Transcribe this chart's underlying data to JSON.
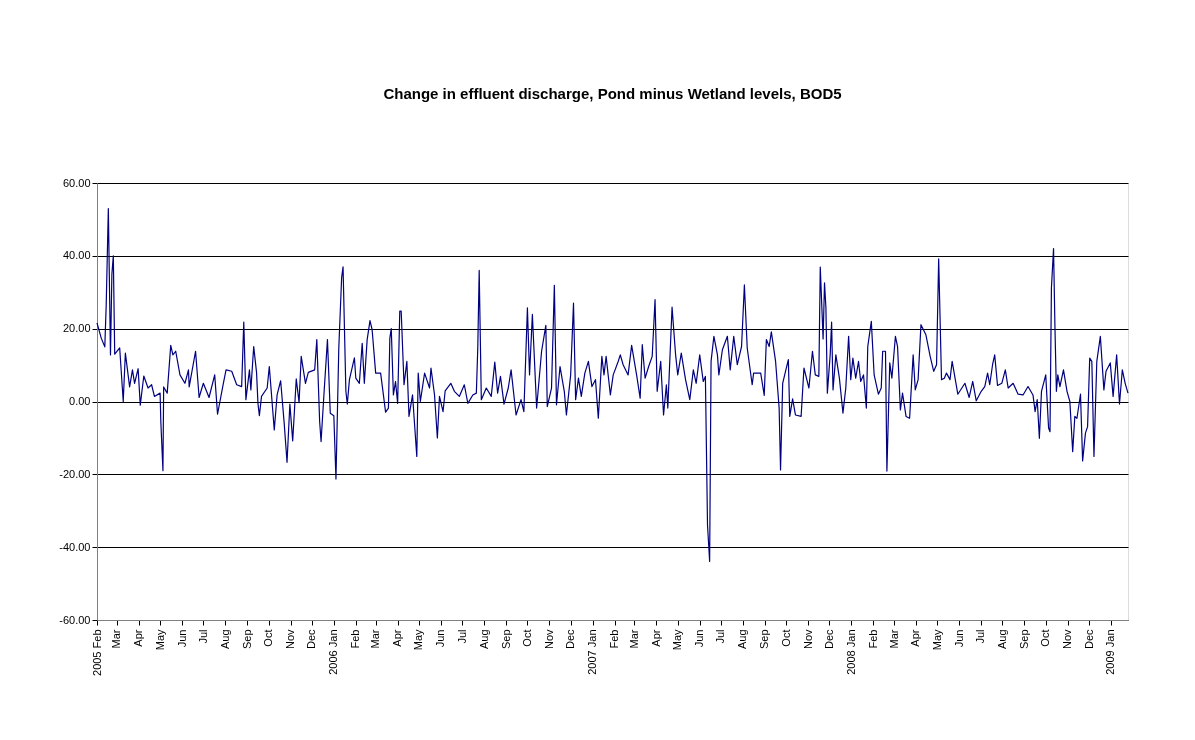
{
  "chart_data": {
    "type": "line",
    "title": "Change in effluent discharge, Pond minus Wetland levels, BOD5",
    "x": [
      "2005-02-01",
      "2005-02-07",
      "2005-02-12",
      "2005-02-14",
      "2005-02-17",
      "2005-02-20",
      "2005-02-22",
      "2005-02-24",
      "2005-02-26",
      "2005-03-05",
      "2005-03-10",
      "2005-03-13",
      "2005-03-19",
      "2005-03-23",
      "2005-03-26",
      "2005-03-31",
      "2005-04-03",
      "2005-04-08",
      "2005-04-14",
      "2005-04-19",
      "2005-04-23",
      "2005-05-01",
      "2005-05-02",
      "2005-05-05",
      "2005-05-06",
      "2005-05-11",
      "2005-05-16",
      "2005-05-19",
      "2005-05-23",
      "2005-05-29",
      "2005-06-05",
      "2005-06-10",
      "2005-06-11",
      "2005-06-20",
      "2005-06-25",
      "2005-07-01",
      "2005-07-09",
      "2005-07-17",
      "2005-07-21",
      "2005-07-29",
      "2005-08-02",
      "2005-08-10",
      "2005-08-17",
      "2005-08-24",
      "2005-08-27",
      "2005-08-30",
      "2005-09-04",
      "2005-09-06",
      "2005-09-10",
      "2005-09-14",
      "2005-09-16",
      "2005-09-18",
      "2005-09-21",
      "2005-09-29",
      "2005-10-02",
      "2005-10-09",
      "2005-10-13",
      "2005-10-18",
      "2005-10-23",
      "2005-10-27",
      "2005-10-31",
      "2005-11-04",
      "2005-11-09",
      "2005-11-13",
      "2005-11-16",
      "2005-11-22",
      "2005-11-26",
      "2005-12-05",
      "2005-12-08",
      "2005-12-12",
      "2005-12-14",
      "2005-12-18",
      "2005-12-23",
      "2005-12-27",
      "2006-01-01",
      "2006-01-04",
      "2006-01-08",
      "2006-01-12",
      "2006-01-14",
      "2006-01-18",
      "2006-01-20",
      "2006-01-23",
      "2006-01-30",
      "2006-02-01",
      "2006-02-06",
      "2006-02-10",
      "2006-02-13",
      "2006-02-17",
      "2006-02-21",
      "2006-02-24",
      "2006-03-01",
      "2006-03-08",
      "2006-03-15",
      "2006-03-19",
      "2006-03-21",
      "2006-03-23",
      "2006-03-26",
      "2006-03-29",
      "2006-04-01",
      "2006-04-04",
      "2006-04-06",
      "2006-04-10",
      "2006-04-14",
      "2006-04-17",
      "2006-04-22",
      "2006-04-28",
      "2006-04-30",
      "2006-05-03",
      "2006-05-09",
      "2006-05-16",
      "2006-05-18",
      "2006-05-23",
      "2006-05-27",
      "2006-05-30",
      "2006-06-04",
      "2006-06-07",
      "2006-06-15",
      "2006-06-20",
      "2006-06-27",
      "2006-07-04",
      "2006-07-09",
      "2006-07-16",
      "2006-07-21",
      "2006-07-23",
      "2006-07-25",
      "2006-07-28",
      "2006-08-04",
      "2006-08-11",
      "2006-08-16",
      "2006-08-20",
      "2006-08-24",
      "2006-08-29",
      "2006-09-04",
      "2006-09-08",
      "2006-09-15",
      "2006-09-22",
      "2006-09-26",
      "2006-10-01",
      "2006-10-04",
      "2006-10-08",
      "2006-10-14",
      "2006-10-21",
      "2006-10-27",
      "2006-10-29",
      "2006-11-04",
      "2006-11-08",
      "2006-11-11",
      "2006-11-16",
      "2006-11-22",
      "2006-11-25",
      "2006-12-01",
      "2006-12-05",
      "2006-12-08",
      "2006-12-12",
      "2006-12-16",
      "2006-12-21",
      "2006-12-26",
      "2006-12-31",
      "2007-01-05",
      "2007-01-09",
      "2007-01-14",
      "2007-01-17",
      "2007-01-20",
      "2007-01-26",
      "2007-01-30",
      "2007-02-06",
      "2007-02-09",
      "2007-02-13",
      "2007-02-20",
      "2007-02-25",
      "2007-03-04",
      "2007-03-09",
      "2007-03-12",
      "2007-03-16",
      "2007-03-21",
      "2007-03-26",
      "2007-03-30",
      "2007-04-02",
      "2007-04-07",
      "2007-04-11",
      "2007-04-15",
      "2007-04-17",
      "2007-04-23",
      "2007-04-28",
      "2007-05-01",
      "2007-05-06",
      "2007-05-12",
      "2007-05-18",
      "2007-05-23",
      "2007-05-27",
      "2007-06-01",
      "2007-06-06",
      "2007-06-09",
      "2007-06-12",
      "2007-06-15",
      "2007-06-17",
      "2007-06-21",
      "2007-06-26",
      "2007-06-28",
      "2007-07-03",
      "2007-07-10",
      "2007-07-14",
      "2007-07-19",
      "2007-07-24",
      "2007-07-30",
      "2007-08-03",
      "2007-08-07",
      "2007-08-14",
      "2007-08-16",
      "2007-08-26",
      "2007-08-31",
      "2007-09-03",
      "2007-09-07",
      "2007-09-10",
      "2007-09-16",
      "2007-09-21",
      "2007-09-23",
      "2007-09-26",
      "2007-09-30",
      "2007-10-04",
      "2007-10-06",
      "2007-10-10",
      "2007-10-14",
      "2007-10-22",
      "2007-10-26",
      "2007-11-02",
      "2007-11-07",
      "2007-11-11",
      "2007-11-16",
      "2007-11-18",
      "2007-11-22",
      "2007-11-24",
      "2007-11-26",
      "2007-11-28",
      "2007-12-02",
      "2007-12-04",
      "2007-12-06",
      "2007-12-10",
      "2007-12-15",
      "2007-12-20",
      "2007-12-24",
      "2007-12-28",
      "2007-12-31",
      "2008-01-03",
      "2008-01-07",
      "2008-01-11",
      "2008-01-14",
      "2008-01-18",
      "2008-01-22",
      "2008-01-24",
      "2008-01-29",
      "2008-02-02",
      "2008-02-08",
      "2008-02-12",
      "2008-02-14",
      "2008-02-18",
      "2008-02-20",
      "2008-02-24",
      "2008-02-27",
      "2008-03-03",
      "2008-03-06",
      "2008-03-10",
      "2008-03-13",
      "2008-03-18",
      "2008-03-23",
      "2008-03-28",
      "2008-03-31",
      "2008-04-04",
      "2008-04-08",
      "2008-04-15",
      "2008-04-21",
      "2008-04-26",
      "2008-04-30",
      "2008-05-03",
      "2008-05-07",
      "2008-05-11",
      "2008-05-14",
      "2008-05-19",
      "2008-05-22",
      "2008-05-30",
      "2008-06-09",
      "2008-06-15",
      "2008-06-20",
      "2008-06-25",
      "2008-07-02",
      "2008-07-07",
      "2008-07-11",
      "2008-07-14",
      "2008-07-18",
      "2008-07-21",
      "2008-07-25",
      "2008-07-31",
      "2008-08-05",
      "2008-08-09",
      "2008-08-16",
      "2008-08-23",
      "2008-08-30",
      "2008-09-06",
      "2008-09-13",
      "2008-09-16",
      "2008-09-19",
      "2008-09-22",
      "2008-09-25",
      "2008-10-01",
      "2008-10-05",
      "2008-10-07",
      "2008-10-09",
      "2008-10-12",
      "2008-10-14",
      "2008-10-16",
      "2008-10-18",
      "2008-10-21",
      "2008-10-26",
      "2008-10-31",
      "2008-11-04",
      "2008-11-08",
      "2008-11-11",
      "2008-11-14",
      "2008-11-19",
      "2008-11-22",
      "2008-11-26",
      "2008-11-29",
      "2008-12-02",
      "2008-12-05",
      "2008-12-08",
      "2008-12-12",
      "2008-12-17",
      "2008-12-22",
      "2008-12-25",
      "2008-12-31",
      "2009-01-04",
      "2009-01-09",
      "2009-01-13",
      "2009-01-17",
      "2009-01-21",
      "2009-01-25"
    ],
    "series": [
      {
        "color": "#000080",
        "values": [
          21.6,
          17.4,
          15,
          26.6,
          53,
          12.8,
          35,
          40,
          13,
          14.7,
          0,
          13.3,
          4,
          8.7,
          5,
          9,
          -1,
          7,
          3.7,
          4.6,
          1.4,
          2.3,
          -5.5,
          -19,
          4,
          2.3,
          15.4,
          12.8,
          13.8,
          7.3,
          5,
          8.7,
          4,
          13.8,
          1.1,
          5,
          1.1,
          7.3,
          -3.5,
          4.8,
          8.7,
          8.3,
          4.6,
          4.1,
          21.8,
          0.5,
          8.7,
          3.2,
          15.1,
          8,
          -0.5,
          -3.9,
          1.4,
          3.7,
          9.6,
          -7.8,
          1.8,
          5.7,
          -6,
          -16.7,
          -0.7,
          -10.8,
          6.2,
          -0.3,
          12.4,
          5,
          8,
          8.7,
          17,
          -5.5,
          -11,
          1.8,
          17,
          -3.2,
          -3.9,
          -21.3,
          14.7,
          34,
          37,
          2.8,
          -0.7,
          6,
          12,
          6.4,
          5,
          16,
          5,
          17,
          22.2,
          19.7,
          7.8,
          7.8,
          -2.9,
          -1.8,
          17.4,
          20,
          1.8,
          5.5,
          -0.5,
          24.8,
          24.8,
          4.6,
          11,
          -4.1,
          1.8,
          -15.1,
          7.8,
          0,
          7.8,
          3.7,
          9.2,
          1.8,
          -10,
          1.4,
          -2.8,
          2.9,
          5,
          2.8,
          1.4,
          4.6,
          -0.5,
          1.8,
          2.3,
          14.7,
          36,
          0.5,
          3.7,
          1.4,
          10.8,
          2.3,
          6.9,
          -0.7,
          3.7,
          8.7,
          -3.7,
          0.5,
          -2.8,
          25.7,
          7.3,
          23.9,
          -1.8,
          13.8,
          20.9,
          -1.4,
          3.7,
          31.9,
          -0.9,
          9.6,
          2.8,
          -3.7,
          7.3,
          27,
          0.5,
          6.4,
          1.4,
          7.8,
          11,
          4.1,
          6,
          -4.6,
          12.4,
          7.3,
          12.4,
          1.8,
          7.3,
          11,
          12.8,
          10.1,
          7.3,
          15.4,
          7.3,
          0.9,
          15.6,
          6.4,
          9.6,
          12.4,
          28,
          2.8,
          11,
          -3.7,
          4.6,
          -1.8,
          25.9,
          12.8,
          7.3,
          13.3,
          6,
          0.5,
          8.7,
          5,
          12.8,
          5.5,
          6.9,
          -34,
          -43.9,
          11,
          17.9,
          12.8,
          7.3,
          14.2,
          17.9,
          8.7,
          17.9,
          10.1,
          15.1,
          32,
          14.7,
          4.6,
          7.8,
          7.8,
          1.7,
          17,
          15.1,
          19.1,
          11,
          -1.8,
          -18.8,
          5,
          8.3,
          11.5,
          -4.1,
          0.7,
          -3.7,
          -4.1,
          9.2,
          3.7,
          13.8,
          7.3,
          6.9,
          36.9,
          17.2,
          32.6,
          25.7,
          2.3,
          12.8,
          21.8,
          3.2,
          12.8,
          6.4,
          -3.2,
          3.7,
          17.9,
          6,
          11.9,
          6.4,
          11,
          5.5,
          7.3,
          -1.8,
          15.1,
          22,
          7.3,
          2,
          3.7,
          13.8,
          13.8,
          -19.1,
          10.6,
          6.4,
          17.9,
          15.1,
          -2.3,
          2.3,
          -4.1,
          -4.6,
          12.8,
          3.2,
          6,
          21.1,
          18.3,
          12.4,
          8.3,
          10.1,
          39.2,
          6,
          6.4,
          7.8,
          6,
          11,
          2,
          5,
          1.1,
          5.5,
          0.2,
          2.8,
          4.1,
          7.8,
          4.6,
          10.1,
          12.8,
          4.4,
          5,
          8.7,
          3.7,
          5,
          2,
          1.8,
          4.1,
          1.8,
          -2.8,
          0.5,
          -10.1,
          2.8,
          7.3,
          -7.3,
          -8.3,
          31.2,
          42,
          20.2,
          2.8,
          7.3,
          4.1,
          8.7,
          2.8,
          0,
          -13.8,
          -4.1,
          -4.6,
          2,
          -16.3,
          -8.7,
          -6.9,
          11.9,
          11,
          -15.1,
          11,
          17.9,
          3.2,
          8.3,
          10.6,
          1.4,
          12.8,
          -0.7,
          8.7,
          5,
          2.3
        ]
      }
    ],
    "xlim": [
      "2005-02-01",
      "2009-01-25"
    ],
    "xticks": [
      {
        "value": "2005-02-01",
        "label": "2005 Feb"
      },
      {
        "value": "2005-03-01",
        "label": "Mar"
      },
      {
        "value": "2005-04-01",
        "label": "Apr"
      },
      {
        "value": "2005-05-01",
        "label": "May"
      },
      {
        "value": "2005-06-01",
        "label": "Jun"
      },
      {
        "value": "2005-07-01",
        "label": "Jul"
      },
      {
        "value": "2005-08-01",
        "label": "Aug"
      },
      {
        "value": "2005-09-01",
        "label": "Sep"
      },
      {
        "value": "2005-10-01",
        "label": "Oct"
      },
      {
        "value": "2005-11-01",
        "label": "Nov"
      },
      {
        "value": "2005-12-01",
        "label": "Dec"
      },
      {
        "value": "2006-01-01",
        "label": "2006 Jan"
      },
      {
        "value": "2006-02-01",
        "label": "Feb"
      },
      {
        "value": "2006-03-01",
        "label": "Mar"
      },
      {
        "value": "2006-04-01",
        "label": "Apr"
      },
      {
        "value": "2006-05-01",
        "label": "May"
      },
      {
        "value": "2006-06-01",
        "label": "Jun"
      },
      {
        "value": "2006-07-01",
        "label": "Jul"
      },
      {
        "value": "2006-08-01",
        "label": "Aug"
      },
      {
        "value": "2006-09-01",
        "label": "Sep"
      },
      {
        "value": "2006-10-01",
        "label": "Oct"
      },
      {
        "value": "2006-11-01",
        "label": "Nov"
      },
      {
        "value": "2006-12-01",
        "label": "Dec"
      },
      {
        "value": "2007-01-01",
        "label": "2007 Jan"
      },
      {
        "value": "2007-02-01",
        "label": "Feb"
      },
      {
        "value": "2007-03-01",
        "label": "Mar"
      },
      {
        "value": "2007-04-01",
        "label": "Apr"
      },
      {
        "value": "2007-05-01",
        "label": "May"
      },
      {
        "value": "2007-06-01",
        "label": "Jun"
      },
      {
        "value": "2007-07-01",
        "label": "Jul"
      },
      {
        "value": "2007-08-01",
        "label": "Aug"
      },
      {
        "value": "2007-09-01",
        "label": "Sep"
      },
      {
        "value": "2007-10-01",
        "label": "Oct"
      },
      {
        "value": "2007-11-01",
        "label": "Nov"
      },
      {
        "value": "2007-12-01",
        "label": "Dec"
      },
      {
        "value": "2008-01-01",
        "label": "2008 Jan"
      },
      {
        "value": "2008-02-01",
        "label": "Feb"
      },
      {
        "value": "2008-03-01",
        "label": "Mar"
      },
      {
        "value": "2008-04-01",
        "label": "Apr"
      },
      {
        "value": "2008-05-01",
        "label": "May"
      },
      {
        "value": "2008-06-01",
        "label": "Jun"
      },
      {
        "value": "2008-07-01",
        "label": "Jul"
      },
      {
        "value": "2008-08-01",
        "label": "Aug"
      },
      {
        "value": "2008-09-01",
        "label": "Sep"
      },
      {
        "value": "2008-10-01",
        "label": "Oct"
      },
      {
        "value": "2008-11-01",
        "label": "Nov"
      },
      {
        "value": "2008-12-01",
        "label": "Dec"
      },
      {
        "value": "2009-01-01",
        "label": "2009 Jan"
      }
    ],
    "ylim": [
      -60,
      60
    ],
    "yticks": [
      {
        "value": -60,
        "label": "-60.00"
      },
      {
        "value": -40,
        "label": "-40.00"
      },
      {
        "value": -20,
        "label": "-20.00"
      },
      {
        "value": 0,
        "label": "0.00"
      },
      {
        "value": 20,
        "label": "20.00"
      },
      {
        "value": 40,
        "label": "40.00"
      },
      {
        "value": 60,
        "label": "60.00"
      }
    ],
    "grid": "y",
    "marker": "none",
    "line_style": "solid"
  }
}
